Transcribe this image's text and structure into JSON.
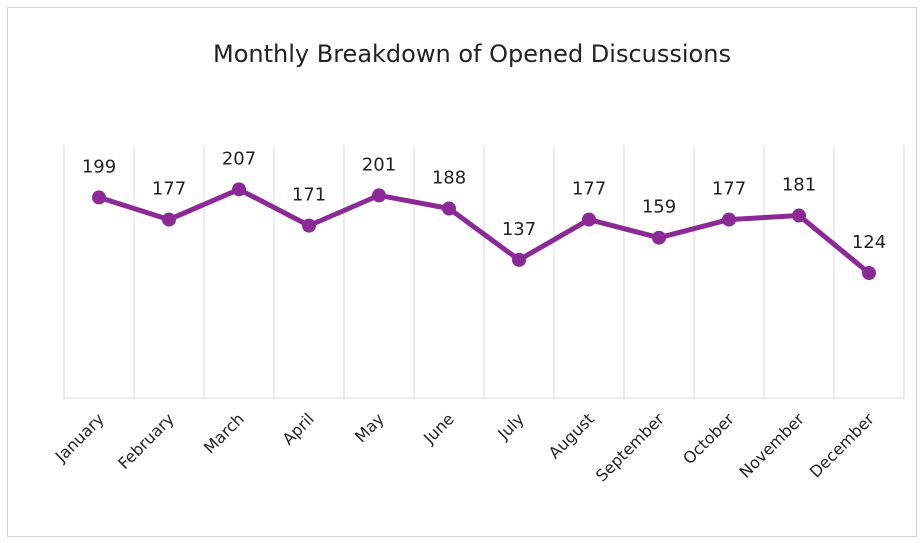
{
  "chart_data": {
    "type": "line",
    "title": "Monthly Breakdown of Opened Discussions",
    "categories": [
      "January",
      "February",
      "March",
      "April",
      "May",
      "June",
      "July",
      "August",
      "September",
      "October",
      "November",
      "December"
    ],
    "values": [
      199,
      177,
      207,
      171,
      201,
      188,
      137,
      177,
      159,
      177,
      181,
      124
    ],
    "color": "#8b2a96",
    "ylim": [
      0,
      250
    ],
    "data_labels": true
  }
}
